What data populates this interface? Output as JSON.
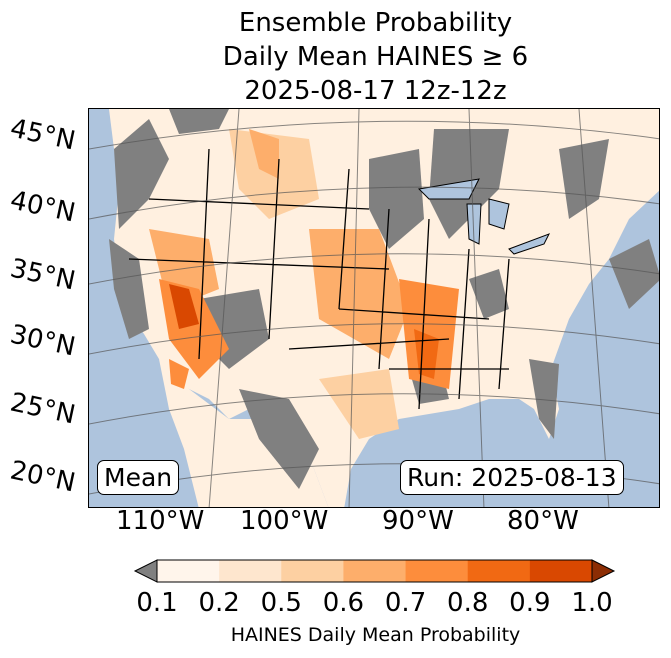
{
  "title": {
    "line1": "Ensemble Probability",
    "line2": "Daily Mean HAINES ≥ 6",
    "line3": "2025-08-17 12z-12z"
  },
  "map": {
    "lat_labels": [
      "45°N",
      "40°N",
      "35°N",
      "30°N",
      "25°N",
      "20°N"
    ],
    "lon_labels": [
      "110°W",
      "100°W",
      "90°W",
      "80°W"
    ],
    "mean_label": "Mean",
    "run_label": "Run: 2025-08-13",
    "colors": {
      "ocean": "#aec4dd",
      "below": "#808080"
    }
  },
  "colorbar": {
    "ticks": [
      "0.1",
      "0.2",
      "0.5",
      "0.6",
      "0.7",
      "0.8",
      "0.9",
      "1.0"
    ],
    "colors": [
      "#fff5eb",
      "#fee6ce",
      "#fdd0a2",
      "#fdae6b",
      "#fd8d3c",
      "#f16913",
      "#d94801",
      "#8c2d04"
    ],
    "label": "HAINES Daily Mean Probability"
  }
}
